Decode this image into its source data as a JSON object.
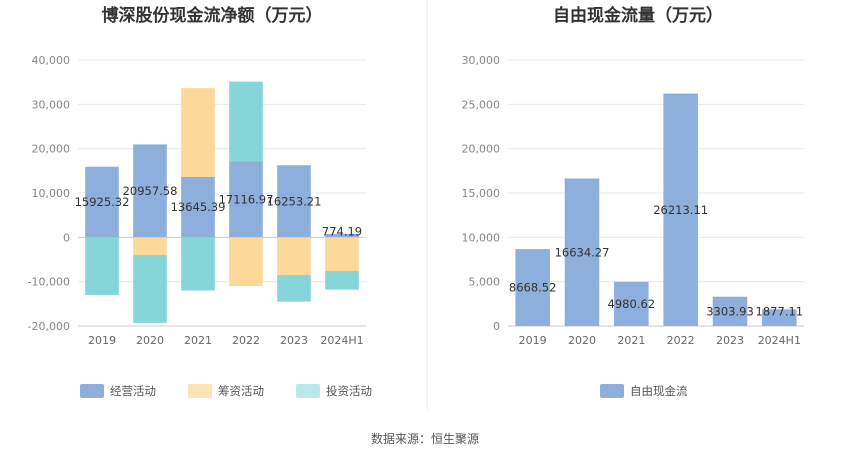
{
  "source_note": "数据来源：恒生聚源",
  "chart_data": [
    {
      "type": "bar",
      "stacked": true,
      "title": "博深股份现金流净额（万元）",
      "categories": [
        "2019",
        "2020",
        "2021",
        "2022",
        "2023",
        "2024H1"
      ],
      "ylim": [
        -20000,
        40000
      ],
      "yticks": [
        -20000,
        -10000,
        0,
        10000,
        20000,
        30000,
        40000
      ],
      "ytick_labels": [
        "-20,000",
        "-10,000",
        "0",
        "10,000",
        "20,000",
        "30,000",
        "40,000"
      ],
      "grid": true,
      "legend_position": "bottom",
      "series": [
        {
          "name": "经营活动",
          "color": "#8eaedc",
          "values": [
            15925.32,
            20957.58,
            13645.39,
            17116.97,
            16253.21,
            774.19
          ],
          "labels": [
            "15925.32",
            "20957.58",
            "13645.39",
            "17116.97",
            "16253.21",
            "774.19"
          ]
        },
        {
          "name": "筹资活动",
          "color": "#fcd899",
          "values": [
            0,
            -4000,
            20000,
            -11000,
            -8500,
            -7600
          ]
        },
        {
          "name": "投资活动",
          "color": "#86d5d9",
          "values": [
            -13000,
            -15300,
            -12000,
            18000,
            -6000,
            -4200
          ]
        }
      ]
    },
    {
      "type": "bar",
      "title": "自由现金流量（万元）",
      "categories": [
        "2019",
        "2020",
        "2021",
        "2022",
        "2023",
        "2024H1"
      ],
      "ylim": [
        0,
        30000
      ],
      "yticks": [
        0,
        5000,
        10000,
        15000,
        20000,
        25000,
        30000
      ],
      "ytick_labels": [
        "0",
        "5,000",
        "10,000",
        "15,000",
        "20,000",
        "25,000",
        "30,000"
      ],
      "grid": true,
      "legend_position": "bottom",
      "series": [
        {
          "name": "自由现金流",
          "color": "#8eaedc",
          "values": [
            8668.52,
            16634.27,
            4980.62,
            26213.11,
            3303.93,
            1877.11
          ],
          "labels": [
            "8668.52",
            "16634.27",
            "4980.62",
            "26213.11",
            "3303.93",
            "1877.11"
          ]
        }
      ]
    }
  ]
}
